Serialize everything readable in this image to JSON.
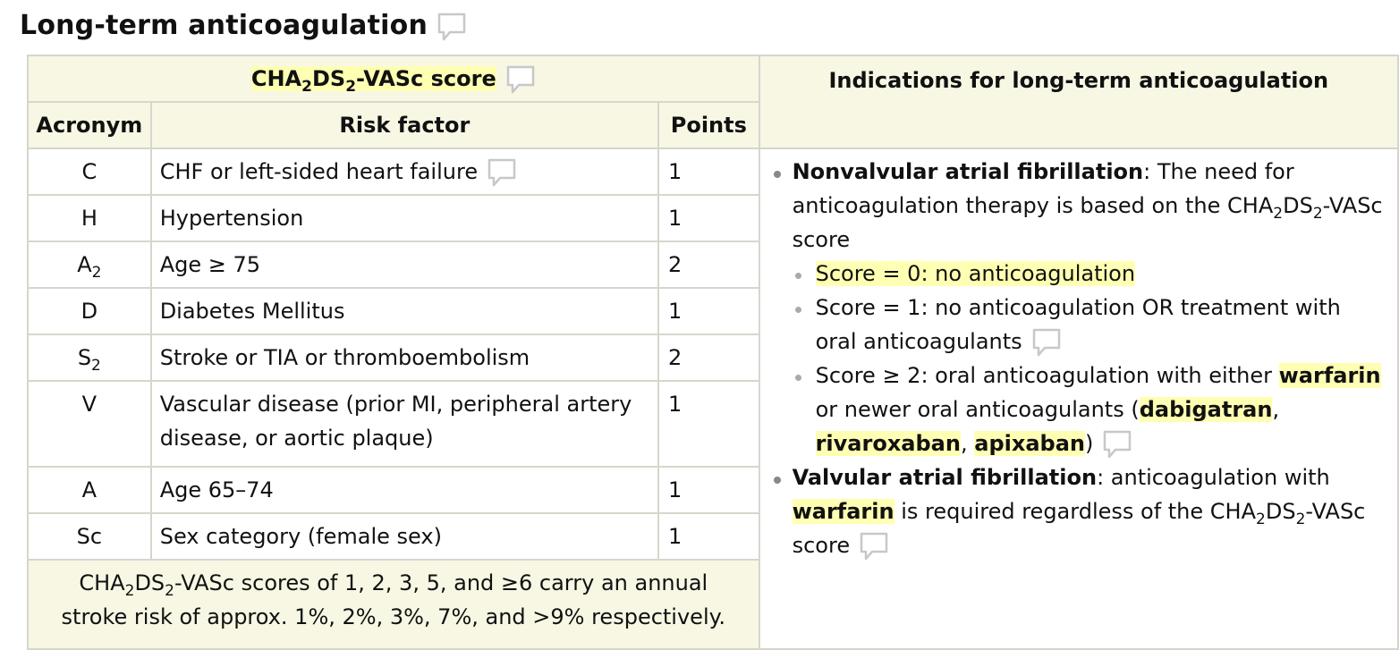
{
  "page_title": "Long-term anticoagulation",
  "score_table": {
    "title_pre": "CHA",
    "title_sub1": "2",
    "title_mid": "DS",
    "title_sub2": "2",
    "title_post": "-VASc score",
    "headers": {
      "acronym": "Acronym",
      "risk_factor": "Risk factor",
      "points": "Points"
    },
    "rows": [
      {
        "acronym": "C",
        "acronym_sub": "",
        "risk": "CHF or left-sided heart failure",
        "points": "1"
      },
      {
        "acronym": "H",
        "acronym_sub": "",
        "risk": "Hypertension",
        "points": "1"
      },
      {
        "acronym": "A",
        "acronym_sub": "2",
        "risk": "Age ≥ 75",
        "points": "2"
      },
      {
        "acronym": "D",
        "acronym_sub": "",
        "risk": "Diabetes Mellitus",
        "points": "1"
      },
      {
        "acronym": "S",
        "acronym_sub": "2",
        "risk": "Stroke or TIA or thromboembolism",
        "points": "2"
      },
      {
        "acronym": "V",
        "acronym_sub": "",
        "risk": "Vascular disease (prior MI, peripheral artery disease, or aortic plaque)",
        "points": "1"
      },
      {
        "acronym": "A",
        "acronym_sub": "",
        "risk": "Age 65–74",
        "points": "1"
      },
      {
        "acronym": "Sc",
        "acronym_sub": "",
        "risk": "Sex category (female sex)",
        "points": "1"
      }
    ],
    "footer_line1_post": "-VASc scores of 1, 2, 3, 5, and ≥6 carry an annual",
    "footer_line2": "stroke risk of approx. 1%, 2%, 3%, 7%, and >9% respectively."
  },
  "indications": {
    "header": "Indications for long-term anticoagulation",
    "nonvalvular_term": "Nonvalvular atrial fibrillation",
    "nonvalvular_text_pre": ": The need for anticoagulation therapy is based on the CHA",
    "nonvalvular_text_mid": "DS",
    "nonvalvular_text_post": "-VASc score",
    "score0": "Score = 0: no anticoagulation",
    "score1": "Score = 1: no anticoagulation OR treatment with oral anticoagulants",
    "score2_pre": "Score ≥ 2: oral anticoagulation with either",
    "warfarin": "warfarin",
    "score2_mid": " or newer oral anticoagulants (",
    "dabigatran": "dabigatran",
    "comma": ",",
    "rivaroxaban": "rivaroxaban",
    "apixaban": "apixaban",
    "score2_close": ")",
    "valvular_term": "Valvular atrial fibrillation",
    "valvular_text_pre": ": anticoagulation with",
    "valvular_text_mid": " is required regardless of the CHA",
    "valvular_text_ds": "DS",
    "valvular_text_post": "-VASc score"
  },
  "sub_two": "2",
  "icons": {
    "comment": "comment-bubble-icon"
  }
}
